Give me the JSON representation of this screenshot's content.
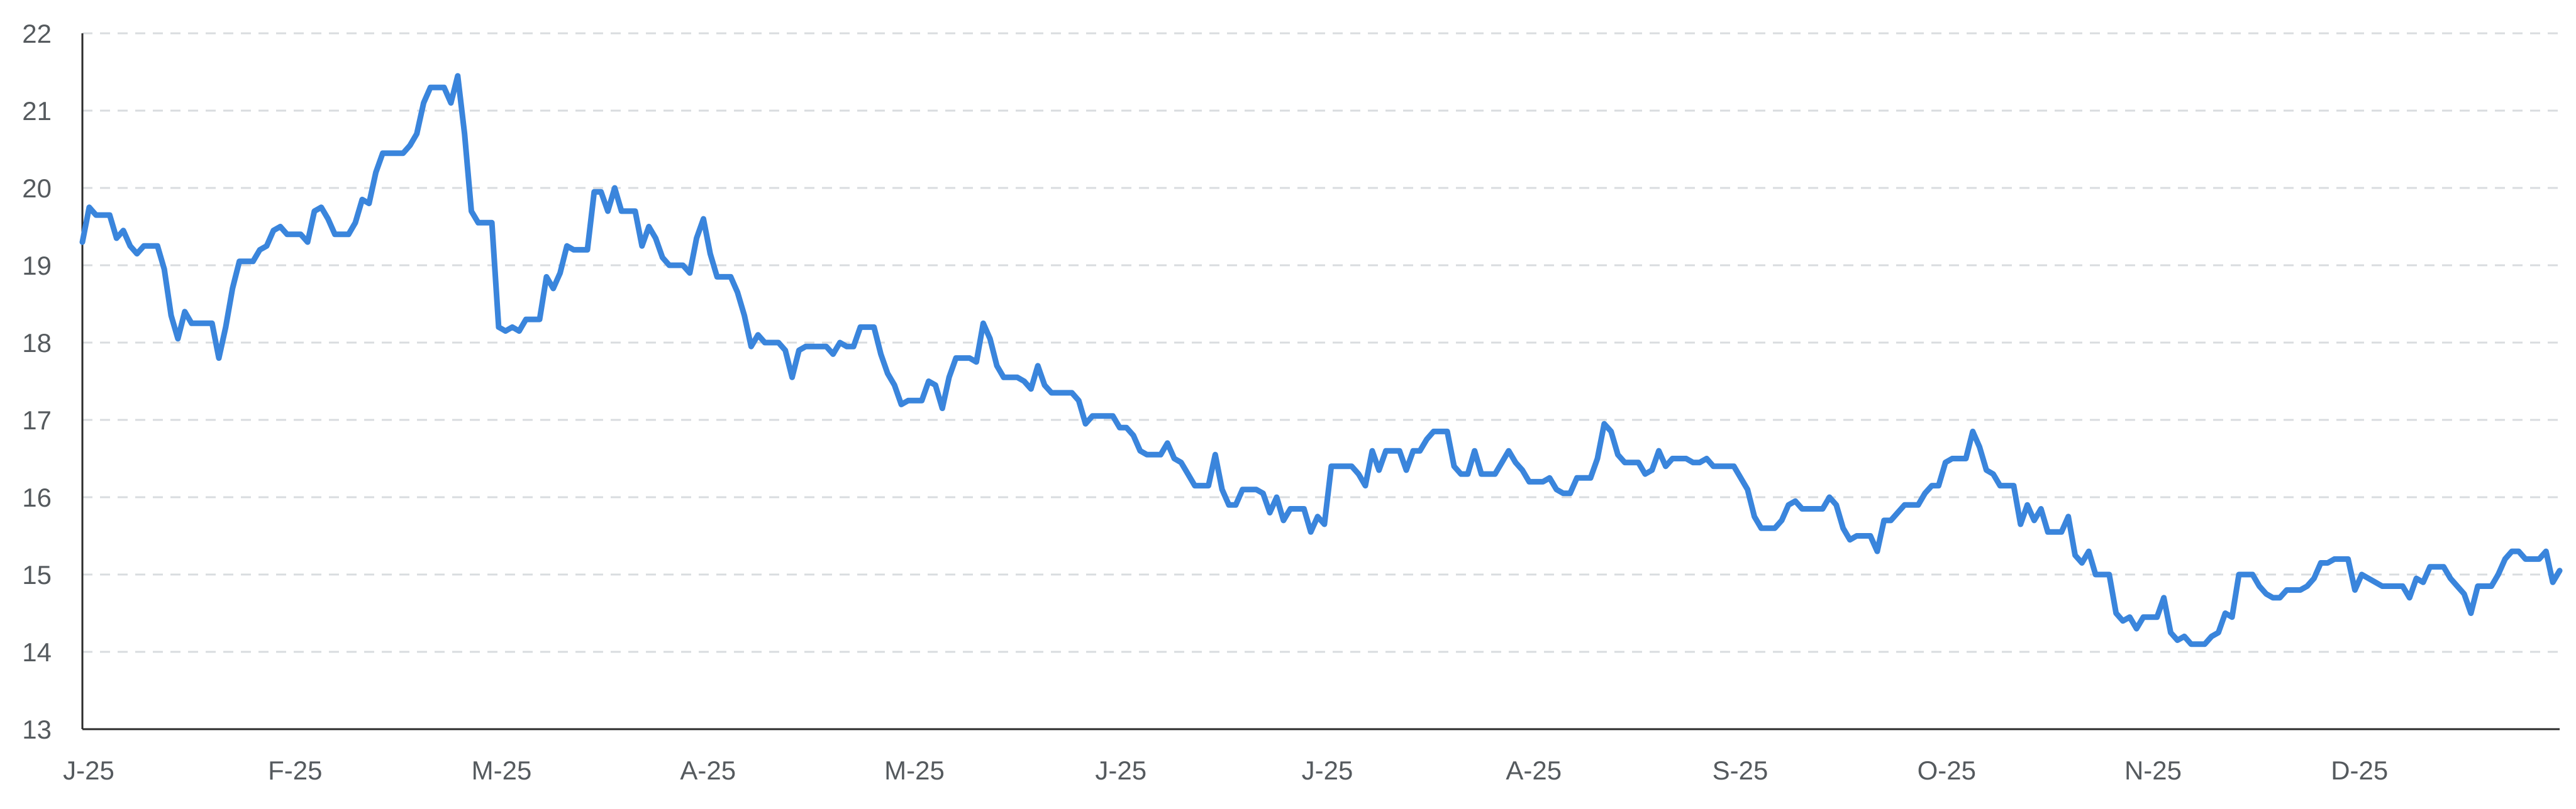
{
  "chart_data": {
    "type": "line",
    "title": "",
    "xlabel": "",
    "ylabel": "",
    "ylim": [
      13,
      22
    ],
    "yticks": [
      13,
      14,
      15,
      16,
      17,
      18,
      19,
      20,
      21,
      22
    ],
    "xticks": [
      "J-25",
      "F-25",
      "M-25",
      "A-25",
      "M-25",
      "J-25",
      "J-25",
      "A-25",
      "S-25",
      "O-25",
      "N-25",
      "D-25"
    ],
    "grid": "horizontal-dashed",
    "legend": "none",
    "line_color": "#3a85dc",
    "series": [
      {
        "values": [
          19.3,
          19.75,
          19.65,
          19.65,
          19.65,
          19.35,
          19.45,
          19.25,
          19.15,
          19.25,
          19.25,
          19.25,
          18.95,
          18.35,
          18.05,
          18.4,
          18.25,
          18.25,
          18.25,
          18.25,
          17.8,
          18.2,
          18.7,
          19.05,
          19.05,
          19.05,
          19.2,
          19.25,
          19.45,
          19.5,
          19.4,
          19.4,
          19.4,
          19.3,
          19.7,
          19.75,
          19.6,
          19.4,
          19.4,
          19.4,
          19.55,
          19.85,
          19.8,
          20.2,
          20.45,
          20.45,
          20.45,
          20.45,
          20.55,
          20.7,
          21.1,
          21.3,
          21.3,
          21.3,
          21.1,
          21.45,
          20.7,
          19.7,
          19.55,
          19.55,
          19.55,
          18.2,
          18.15,
          18.2,
          18.15,
          18.3,
          18.3,
          18.3,
          18.85,
          18.7,
          18.9,
          19.25,
          19.2,
          19.2,
          19.2,
          19.95,
          19.95,
          19.7,
          20.0,
          19.7,
          19.7,
          19.7,
          19.25,
          19.5,
          19.35,
          19.1,
          19.0,
          19.0,
          19.0,
          18.9,
          19.35,
          19.6,
          19.15,
          18.85,
          18.85,
          18.85,
          18.65,
          18.35,
          17.95,
          18.1,
          18.0,
          18.0,
          18.0,
          17.9,
          17.55,
          17.9,
          17.95,
          17.95,
          17.95,
          17.95,
          17.85,
          18.0,
          17.95,
          17.95,
          18.2,
          18.2,
          18.2,
          17.85,
          17.6,
          17.45,
          17.2,
          17.25,
          17.25,
          17.25,
          17.5,
          17.45,
          17.15,
          17.55,
          17.8,
          17.8,
          17.8,
          17.75,
          18.25,
          18.05,
          17.7,
          17.55,
          17.55,
          17.55,
          17.5,
          17.4,
          17.7,
          17.45,
          17.35,
          17.35,
          17.35,
          17.35,
          17.25,
          16.95,
          17.05,
          17.05,
          17.05,
          17.05,
          16.9,
          16.9,
          16.8,
          16.6,
          16.55,
          16.55,
          16.55,
          16.7,
          16.5,
          16.45,
          16.3,
          16.15,
          16.15,
          16.15,
          16.55,
          16.1,
          15.9,
          15.9,
          16.1,
          16.1,
          16.1,
          16.05,
          15.8,
          16.0,
          15.7,
          15.85,
          15.85,
          15.85,
          15.55,
          15.75,
          15.65,
          16.4,
          16.4,
          16.4,
          16.4,
          16.3,
          16.15,
          16.6,
          16.35,
          16.6,
          16.6,
          16.6,
          16.35,
          16.6,
          16.6,
          16.75,
          16.85,
          16.85,
          16.85,
          16.4,
          16.3,
          16.3,
          16.6,
          16.3,
          16.3,
          16.3,
          16.45,
          16.6,
          16.45,
          16.35,
          16.2,
          16.2,
          16.2,
          16.25,
          16.1,
          16.05,
          16.05,
          16.25,
          16.25,
          16.25,
          16.5,
          16.95,
          16.85,
          16.55,
          16.45,
          16.45,
          16.45,
          16.3,
          16.35,
          16.6,
          16.4,
          16.5,
          16.5,
          16.5,
          16.45,
          16.45,
          16.5,
          16.4,
          16.4,
          16.4,
          16.4,
          16.25,
          16.1,
          15.75,
          15.6,
          15.6,
          15.6,
          15.7,
          15.9,
          15.95,
          15.85,
          15.85,
          15.85,
          15.85,
          16.0,
          15.9,
          15.6,
          15.45,
          15.5,
          15.5,
          15.5,
          15.3,
          15.7,
          15.7,
          15.8,
          15.9,
          15.9,
          15.9,
          16.05,
          16.15,
          16.15,
          16.45,
          16.5,
          16.5,
          16.5,
          16.85,
          16.65,
          16.35,
          16.3,
          16.15,
          16.15,
          16.15,
          15.65,
          15.9,
          15.7,
          15.85,
          15.55,
          15.55,
          15.55,
          15.75,
          15.25,
          15.15,
          15.3,
          15.0,
          15.0,
          15.0,
          14.5,
          14.4,
          14.45,
          14.3,
          14.45,
          14.45,
          14.45,
          14.7,
          14.25,
          14.15,
          14.2,
          14.1,
          14.1,
          14.1,
          14.2,
          14.25,
          14.5,
          14.45,
          15.0,
          15.0,
          15.0,
          14.85,
          14.75,
          14.7,
          14.7,
          14.8,
          14.8,
          14.8,
          14.85,
          14.95,
          15.15,
          15.15,
          15.2,
          15.2,
          15.2,
          14.8,
          15.0,
          14.95,
          14.9,
          14.85,
          14.85,
          14.85,
          14.85,
          14.7,
          14.95,
          14.9,
          15.1,
          15.1,
          15.1,
          14.95,
          14.85,
          14.75,
          14.5,
          14.85,
          14.85,
          14.85,
          15.0,
          15.2,
          15.3,
          15.3,
          15.2,
          15.2,
          15.2,
          15.3,
          14.9,
          15.05
        ]
      }
    ]
  }
}
